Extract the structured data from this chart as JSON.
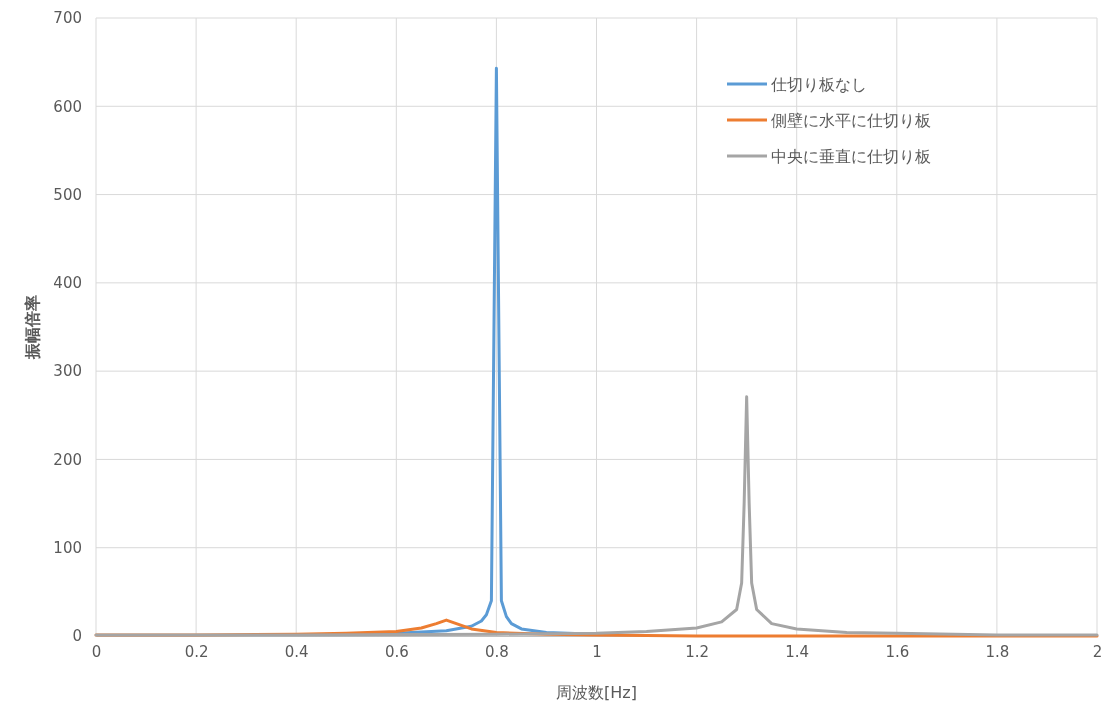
{
  "chart_data": {
    "type": "line",
    "xlabel": "周波数[Hz]",
    "ylabel": "振幅倍率",
    "xlim": [
      0,
      2
    ],
    "ylim": [
      0,
      700
    ],
    "xticks": [
      0,
      0.2,
      0.4,
      0.6,
      0.8,
      1,
      1.2,
      1.4,
      1.6,
      1.8,
      2
    ],
    "yticks": [
      0,
      100,
      200,
      300,
      400,
      500,
      600,
      700
    ],
    "grid": true,
    "legend": "top right",
    "line_style": "solid",
    "marker": "none",
    "series": [
      {
        "name": "仕切り板なし",
        "color": "#5b9bd5",
        "x": [
          0.5,
          0.6,
          0.7,
          0.75,
          0.77,
          0.78,
          0.79,
          0.8,
          0.81,
          0.82,
          0.83,
          0.85,
          0.9,
          1.0
        ],
        "values": [
          2,
          3,
          6,
          11,
          17,
          24,
          40,
          643,
          40,
          22,
          14,
          8,
          4,
          2
        ]
      },
      {
        "name": "側壁に水平に仕切り板",
        "color": "#ed7d31",
        "x": [
          0,
          0.2,
          0.4,
          0.5,
          0.6,
          0.65,
          0.68,
          0.7,
          0.72,
          0.75,
          0.8,
          0.9,
          1.0,
          1.2,
          1.5,
          2.0
        ],
        "values": [
          1,
          1,
          2,
          3,
          5,
          9,
          14,
          18,
          14,
          8,
          4,
          2,
          1,
          0,
          0,
          0
        ]
      },
      {
        "name": "中央に垂直に仕切り板",
        "color": "#a5a5a5",
        "x": [
          0,
          0.4,
          0.8,
          1.0,
          1.1,
          1.2,
          1.25,
          1.28,
          1.29,
          1.295,
          1.3,
          1.305,
          1.31,
          1.32,
          1.35,
          1.4,
          1.5,
          1.6,
          1.8,
          2.0
        ],
        "values": [
          1,
          1,
          2,
          3,
          5,
          9,
          16,
          30,
          60,
          150,
          271,
          150,
          60,
          30,
          14,
          8,
          4,
          3,
          1,
          1
        ]
      }
    ]
  }
}
